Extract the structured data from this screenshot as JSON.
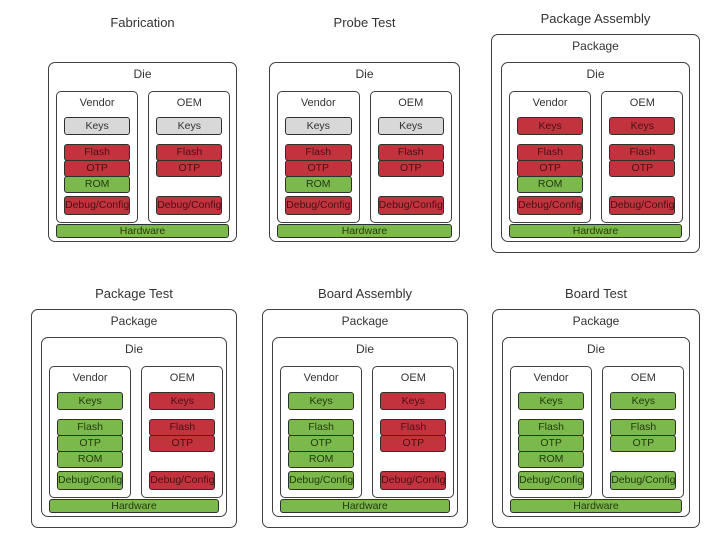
{
  "colors": {
    "red": "#c3333e",
    "green": "#7cb94c",
    "gray": "#d8d8d8",
    "box-border": "#404040",
    "block-border": "#2f2f2f",
    "text": "#333333"
  },
  "labels": {
    "package": "Package",
    "die": "Die",
    "vendor": "Vendor",
    "oem": "OEM",
    "keys": "Keys",
    "flash": "Flash",
    "otp": "OTP",
    "rom": "ROM",
    "debug": "Debug/Config",
    "hardware": "Hardware"
  },
  "stages": [
    {
      "title": "Fabrication",
      "has_package": false,
      "vendor": {
        "keys": "gray",
        "flash": "red",
        "otp": "red",
        "rom": "green",
        "debug": "red"
      },
      "oem": {
        "keys": "gray",
        "flash": "red",
        "otp": "red",
        "debug": "red"
      },
      "hardware": "green"
    },
    {
      "title": "Probe Test",
      "has_package": false,
      "vendor": {
        "keys": "gray",
        "flash": "red",
        "otp": "red",
        "rom": "green",
        "debug": "red"
      },
      "oem": {
        "keys": "gray",
        "flash": "red",
        "otp": "red",
        "debug": "red"
      },
      "hardware": "green"
    },
    {
      "title": "Package Assembly",
      "has_package": true,
      "vendor": {
        "keys": "red",
        "flash": "red",
        "otp": "red",
        "rom": "green",
        "debug": "red"
      },
      "oem": {
        "keys": "red",
        "flash": "red",
        "otp": "red",
        "debug": "red"
      },
      "hardware": "green"
    },
    {
      "title": "Package Test",
      "has_package": true,
      "vendor": {
        "keys": "green",
        "flash": "green",
        "otp": "green",
        "rom": "green",
        "debug": "green"
      },
      "oem": {
        "keys": "red",
        "flash": "red",
        "otp": "red",
        "debug": "red"
      },
      "hardware": "green"
    },
    {
      "title": "Board Assembly",
      "has_package": true,
      "vendor": {
        "keys": "green",
        "flash": "green",
        "otp": "green",
        "rom": "green",
        "debug": "green"
      },
      "oem": {
        "keys": "red",
        "flash": "red",
        "otp": "red",
        "debug": "red"
      },
      "hardware": "green"
    },
    {
      "title": "Board Test",
      "has_package": true,
      "vendor": {
        "keys": "green",
        "flash": "green",
        "otp": "green",
        "rom": "green",
        "debug": "green"
      },
      "oem": {
        "keys": "green",
        "flash": "green",
        "otp": "green",
        "debug": "green"
      },
      "hardware": "green"
    }
  ]
}
